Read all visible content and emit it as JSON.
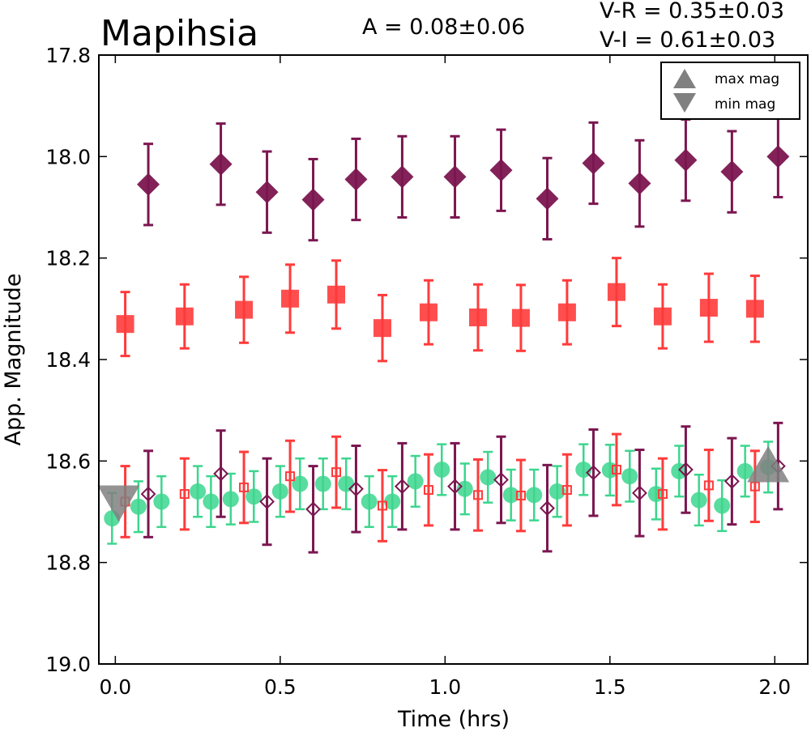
{
  "chart_data": {
    "type": "scatter",
    "title": "Mapihsia",
    "annotations": [
      "A  = 0.08±0.06",
      "V-R = 0.35±0.03",
      "V-I  = 0.61±0.03"
    ],
    "xlabel": "Time (hrs)",
    "ylabel": "App. Magnitude",
    "xlim": [
      -0.05,
      2.1
    ],
    "ylim": [
      19.0,
      17.8
    ],
    "y_inverted": true,
    "x_ticks": [
      0.0,
      0.5,
      1.0,
      1.5,
      2.0
    ],
    "x_tick_labels": [
      "0.0",
      "0.5",
      "1.0",
      "1.5",
      "2.0"
    ],
    "y_ticks": [
      17.8,
      18.0,
      18.2,
      18.4,
      18.6,
      18.8,
      19.0
    ],
    "y_tick_labels": [
      "17.8",
      "18.0",
      "18.2",
      "18.4",
      "18.6",
      "18.8",
      "19.0"
    ],
    "grid": false,
    "legend": {
      "placement": "top-right",
      "entries": [
        {
          "label": "max mag",
          "marker": "triangle-up",
          "color": "#808080"
        },
        {
          "label": "min mag",
          "marker": "triangle-down",
          "color": "#808080"
        }
      ]
    },
    "series": [
      {
        "marker": "diamond",
        "color": "#7b1650",
        "filled": true,
        "x": [
          0.1,
          0.32,
          0.46,
          0.6,
          0.73,
          0.87,
          1.03,
          1.17,
          1.31,
          1.45,
          1.59,
          1.73,
          1.87,
          2.01
        ],
        "y": [
          18.055,
          18.015,
          18.07,
          18.085,
          18.045,
          18.04,
          18.04,
          18.027,
          18.083,
          18.013,
          18.053,
          18.007,
          18.03,
          18.0
        ],
        "err": [
          0.08,
          0.08,
          0.08,
          0.08,
          0.08,
          0.08,
          0.08,
          0.08,
          0.08,
          0.08,
          0.085,
          0.08,
          0.08,
          0.08
        ]
      },
      {
        "marker": "square",
        "color": "#ff3b3b",
        "filled": true,
        "x": [
          0.03,
          0.21,
          0.39,
          0.53,
          0.67,
          0.81,
          0.95,
          1.1,
          1.23,
          1.37,
          1.52,
          1.66,
          1.8,
          1.94
        ],
        "y": [
          18.33,
          18.315,
          18.302,
          18.28,
          18.272,
          18.338,
          18.307,
          18.317,
          18.318,
          18.307,
          18.267,
          18.315,
          18.298,
          18.3
        ],
        "err": [
          0.063,
          0.063,
          0.065,
          0.067,
          0.067,
          0.065,
          0.063,
          0.065,
          0.065,
          0.063,
          0.067,
          0.063,
          0.067,
          0.065
        ]
      },
      {
        "marker": "circle",
        "color": "#3cd68e",
        "filled": true,
        "x": [
          -0.01,
          0.07,
          0.14,
          0.25,
          0.29,
          0.35,
          0.42,
          0.5,
          0.56,
          0.63,
          0.7,
          0.77,
          0.84,
          0.91,
          0.99,
          1.06,
          1.13,
          1.2,
          1.27,
          1.34,
          1.42,
          1.5,
          1.56,
          1.64,
          1.71,
          1.77,
          1.84,
          1.91,
          1.98
        ],
        "y": [
          18.713,
          18.69,
          18.68,
          18.66,
          18.68,
          18.675,
          18.67,
          18.66,
          18.645,
          18.645,
          18.645,
          18.68,
          18.68,
          18.64,
          18.617,
          18.655,
          18.632,
          18.667,
          18.667,
          18.66,
          18.617,
          18.618,
          18.63,
          18.665,
          18.62,
          18.677,
          18.688,
          18.62,
          18.612
        ],
        "err": [
          0.05,
          0.05,
          0.05,
          0.05,
          0.05,
          0.05,
          0.05,
          0.05,
          0.05,
          0.05,
          0.05,
          0.05,
          0.05,
          0.05,
          0.05,
          0.05,
          0.05,
          0.05,
          0.05,
          0.05,
          0.05,
          0.05,
          0.05,
          0.05,
          0.05,
          0.05,
          0.05,
          0.05,
          0.05
        ]
      },
      {
        "marker": "square",
        "color": "#ff3b3b",
        "filled": false,
        "x": [
          0.03,
          0.21,
          0.39,
          0.53,
          0.67,
          0.81,
          0.95,
          1.1,
          1.23,
          1.37,
          1.52,
          1.66,
          1.8,
          1.94
        ],
        "y": [
          18.68,
          18.665,
          18.652,
          18.63,
          18.622,
          18.688,
          18.657,
          18.667,
          18.668,
          18.657,
          18.617,
          18.665,
          18.648,
          18.65
        ],
        "err": [
          0.07,
          0.07,
          0.07,
          0.07,
          0.07,
          0.07,
          0.07,
          0.07,
          0.07,
          0.07,
          0.07,
          0.07,
          0.07,
          0.07
        ]
      },
      {
        "marker": "diamond",
        "color": "#7b1650",
        "filled": false,
        "x": [
          0.1,
          0.32,
          0.46,
          0.6,
          0.73,
          0.87,
          1.03,
          1.17,
          1.31,
          1.45,
          1.59,
          1.73,
          1.87,
          2.01
        ],
        "y": [
          18.665,
          18.625,
          18.68,
          18.695,
          18.655,
          18.65,
          18.65,
          18.637,
          18.693,
          18.623,
          18.663,
          18.617,
          18.64,
          18.61
        ],
        "err": [
          0.085,
          0.085,
          0.085,
          0.085,
          0.085,
          0.085,
          0.085,
          0.085,
          0.085,
          0.085,
          0.085,
          0.085,
          0.085,
          0.085
        ]
      }
    ],
    "extrema": [
      {
        "label": "min mag",
        "marker": "triangle-down",
        "color": "#808080",
        "x": 0.01,
        "y": 18.675
      },
      {
        "label": "max mag",
        "marker": "triangle-up",
        "color": "#808080",
        "x": 1.98,
        "y": 18.615
      }
    ]
  }
}
